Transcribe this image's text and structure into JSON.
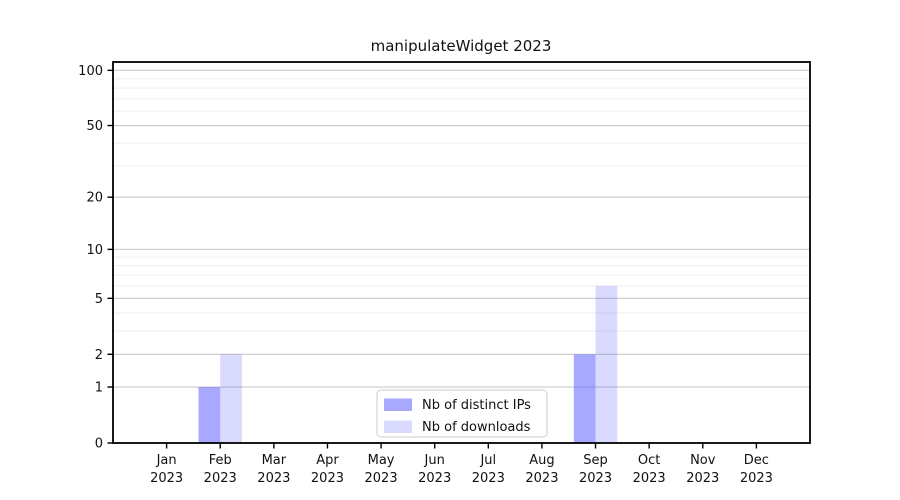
{
  "chart_data": {
    "type": "bar",
    "title": "manipulateWidget 2023",
    "categories": [
      "Jan",
      "Feb",
      "Mar",
      "Apr",
      "May",
      "Jun",
      "Jul",
      "Aug",
      "Sep",
      "Oct",
      "Nov",
      "Dec"
    ],
    "category_year": "2023",
    "series": [
      {
        "name": "Nb of distinct IPs",
        "base_color": "#6666ff",
        "alpha": 0.57,
        "fill": "rgba(102,102,255,0.57)",
        "values": [
          0,
          1,
          0,
          0,
          0,
          0,
          0,
          0,
          2,
          0,
          0,
          0
        ]
      },
      {
        "name": "Nb of downloads",
        "base_color": "#6666ff",
        "alpha": 0.24,
        "fill": "rgba(102,102,255,0.24)",
        "values": [
          0,
          2,
          0,
          0,
          0,
          0,
          0,
          0,
          6,
          0,
          0,
          0
        ]
      }
    ],
    "y_axis": {
      "scale": "log1p",
      "ticks": [
        0,
        1,
        2,
        5,
        10,
        20,
        50,
        100
      ],
      "tick_labels": [
        "0",
        "1",
        "2",
        "5",
        "10",
        "20",
        "50",
        "100"
      ],
      "minor_gridlines": [
        3,
        4,
        6,
        7,
        8,
        9,
        30,
        40,
        60,
        70,
        80,
        90
      ],
      "ylim": [
        0,
        111
      ]
    },
    "x_axis": {
      "tick_count": 12
    },
    "legend": {
      "position": "inside-bottom-center",
      "entries": [
        "Nb of distinct IPs",
        "Nb of downloads"
      ]
    },
    "colors": {
      "background": "#ffffff",
      "axis": "#000000",
      "major_grid": "#c9c9c9",
      "minor_grid": "#ededed",
      "legend_border": "#cccccc",
      "legend_background": "rgba(255,255,255,0.85)",
      "text": "#111111"
    }
  }
}
